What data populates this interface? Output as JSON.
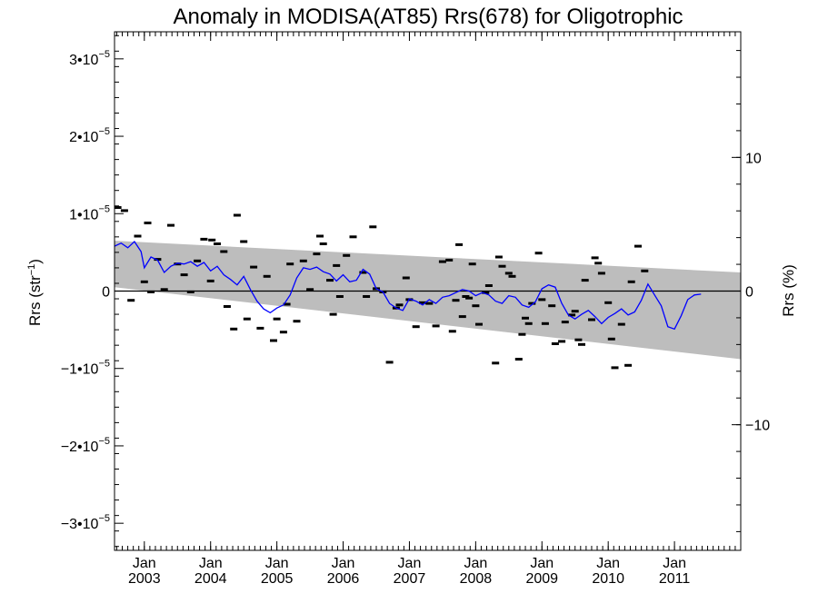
{
  "chart_data": {
    "type": "scatter",
    "title": "Anomaly in MODISA(AT85) Rrs(678) for Oligotrophic",
    "ylabel_left": {
      "base": "Rrs (str",
      "sup": "−1",
      "close": ")"
    },
    "ylabel_right": "Rrs (%)",
    "x_range": [
      2002.55,
      2012.0
    ],
    "y_range": [
      -3.35e-05,
      3.35e-05
    ],
    "y_right_range": [
      -19.4,
      19.4
    ],
    "x_ticks": [
      {
        "x": 2003.0,
        "month": "Jan",
        "year": "2003"
      },
      {
        "x": 2004.0,
        "month": "Jan",
        "year": "2004"
      },
      {
        "x": 2005.0,
        "month": "Jan",
        "year": "2005"
      },
      {
        "x": 2006.0,
        "month": "Jan",
        "year": "2006"
      },
      {
        "x": 2007.0,
        "month": "Jan",
        "year": "2007"
      },
      {
        "x": 2008.0,
        "month": "Jan",
        "year": "2008"
      },
      {
        "x": 2009.0,
        "month": "Jan",
        "year": "2009"
      },
      {
        "x": 2010.0,
        "month": "Jan",
        "year": "2010"
      },
      {
        "x": 2011.0,
        "month": "Jan",
        "year": "2011"
      }
    ],
    "y_ticks_left": [
      {
        "y": 3e-05,
        "mant": "3•10",
        "exp": "−5"
      },
      {
        "y": 2e-05,
        "mant": "2•10",
        "exp": "−5"
      },
      {
        "y": 1e-05,
        "mant": "1•10",
        "exp": "−5"
      },
      {
        "y": 0,
        "mant": "0",
        "exp": ""
      },
      {
        "y": -1e-05,
        "mant": "−1•10",
        "exp": "−5"
      },
      {
        "y": -2e-05,
        "mant": "−2•10",
        "exp": "−5"
      },
      {
        "y": -3e-05,
        "mant": "−3•10",
        "exp": "−5"
      }
    ],
    "y_ticks_right": [
      {
        "y": 10,
        "label": "10"
      },
      {
        "y": 0,
        "label": "0"
      },
      {
        "y": -10,
        "label": "−10"
      }
    ],
    "band": {
      "upper": [
        [
          2002.55,
          6.5e-06
        ],
        [
          2012.0,
          2.4e-06
        ]
      ],
      "lower": [
        [
          2002.55,
          5e-07
        ],
        [
          2012.0,
          -8.8e-06
        ]
      ]
    },
    "series": [
      {
        "kind": "scatter",
        "points": [
          [
            2002.6,
            1.08e-05
          ],
          [
            2002.7,
            1.04e-05
          ],
          [
            2002.8,
            -1.2e-06
          ],
          [
            2002.9,
            7.1e-06
          ],
          [
            2003.0,
            1.2e-06
          ],
          [
            2003.05,
            8.8e-06
          ],
          [
            2003.1,
            -1e-07
          ],
          [
            2003.2,
            4.1e-06
          ],
          [
            2003.3,
            2e-07
          ],
          [
            2003.4,
            8.5e-06
          ],
          [
            2003.5,
            3.5e-06
          ],
          [
            2003.6,
            2.1e-06
          ],
          [
            2003.7,
            -1e-07
          ],
          [
            2003.8,
            3.9e-06
          ],
          [
            2003.9,
            6.7e-06
          ],
          [
            2004.0,
            1.3e-06
          ],
          [
            2004.02,
            6.6e-06
          ],
          [
            2004.1,
            6.1e-06
          ],
          [
            2004.2,
            5.1e-06
          ],
          [
            2004.25,
            -2e-06
          ],
          [
            2004.35,
            -4.9e-06
          ],
          [
            2004.4,
            9.8e-06
          ],
          [
            2004.5,
            6.4e-06
          ],
          [
            2004.55,
            -3.6e-06
          ],
          [
            2004.65,
            3.1e-06
          ],
          [
            2004.75,
            -4.8e-06
          ],
          [
            2004.85,
            1.9e-06
          ],
          [
            2004.95,
            -6.4e-06
          ],
          [
            2005.0,
            -3.6e-06
          ],
          [
            2005.1,
            -5.3e-06
          ],
          [
            2005.15,
            -1.7e-06
          ],
          [
            2005.2,
            3.5e-06
          ],
          [
            2005.3,
            -3.9e-06
          ],
          [
            2005.4,
            3.9e-06
          ],
          [
            2005.5,
            2e-07
          ],
          [
            2005.6,
            4.8e-06
          ],
          [
            2005.65,
            7.1e-06
          ],
          [
            2005.7,
            6.1e-06
          ],
          [
            2005.8,
            1.4e-06
          ],
          [
            2005.85,
            -3e-06
          ],
          [
            2005.9,
            3.3e-06
          ],
          [
            2005.95,
            -7e-07
          ],
          [
            2006.05,
            4.6e-06
          ],
          [
            2006.15,
            7e-06
          ],
          [
            2006.3,
            2.4e-06
          ],
          [
            2006.35,
            -7e-07
          ],
          [
            2006.45,
            8.3e-06
          ],
          [
            2006.5,
            3e-07
          ],
          [
            2006.6,
            -1e-07
          ],
          [
            2006.7,
            -9.2e-06
          ],
          [
            2006.8,
            -2.2e-06
          ],
          [
            2006.85,
            -1.8e-06
          ],
          [
            2006.95,
            1.7e-06
          ],
          [
            2007.0,
            -1.1e-06
          ],
          [
            2007.1,
            -4.6e-06
          ],
          [
            2007.2,
            -1.5e-06
          ],
          [
            2007.3,
            -1.6e-06
          ],
          [
            2007.4,
            -4.5e-06
          ],
          [
            2007.5,
            3.8e-06
          ],
          [
            2007.6,
            4e-06
          ],
          [
            2007.65,
            -5.2e-06
          ],
          [
            2007.7,
            -1.2e-06
          ],
          [
            2007.75,
            6e-06
          ],
          [
            2007.8,
            -3.3e-06
          ],
          [
            2007.85,
            -7e-07
          ],
          [
            2007.9,
            -9e-07
          ],
          [
            2007.95,
            3.5e-06
          ],
          [
            2008.0,
            -1.9e-06
          ],
          [
            2008.05,
            -4.3e-06
          ],
          [
            2008.15,
            -2e-07
          ],
          [
            2008.2,
            7e-07
          ],
          [
            2008.3,
            -9.3e-06
          ],
          [
            2008.35,
            4.4e-06
          ],
          [
            2008.4,
            3.2e-06
          ],
          [
            2008.5,
            2.3e-06
          ],
          [
            2008.55,
            1.9e-06
          ],
          [
            2008.65,
            -8.8e-06
          ],
          [
            2008.7,
            -5.6e-06
          ],
          [
            2008.75,
            -3.5e-06
          ],
          [
            2008.8,
            -4.2e-06
          ],
          [
            2008.85,
            -1.6e-06
          ],
          [
            2008.95,
            4.9e-06
          ],
          [
            2009.0,
            -1.1e-06
          ],
          [
            2009.05,
            -4.2e-06
          ],
          [
            2009.15,
            -1.9e-06
          ],
          [
            2009.2,
            -6.8e-06
          ],
          [
            2009.3,
            -6.5e-06
          ],
          [
            2009.35,
            -4e-06
          ],
          [
            2009.45,
            -3.1e-06
          ],
          [
            2009.5,
            -2.6e-06
          ],
          [
            2009.55,
            -6.3e-06
          ],
          [
            2009.6,
            -6.9e-06
          ],
          [
            2009.65,
            1.4e-06
          ],
          [
            2009.75,
            -3.7e-06
          ],
          [
            2009.8,
            4.3e-06
          ],
          [
            2009.85,
            3.6e-06
          ],
          [
            2009.9,
            2.3e-06
          ],
          [
            2010.0,
            -1.5e-06
          ],
          [
            2010.05,
            -6.2e-06
          ],
          [
            2010.1,
            -9.9e-06
          ],
          [
            2010.2,
            -4.3e-06
          ],
          [
            2010.3,
            -9.6e-06
          ],
          [
            2010.35,
            1.2e-06
          ],
          [
            2010.45,
            5.8e-06
          ],
          [
            2010.55,
            2.6e-06
          ]
        ]
      },
      {
        "kind": "line",
        "name": "",
        "color": "#0000ff",
        "points": [
          [
            2002.55,
            5.8e-06
          ],
          [
            2002.65,
            6.2e-06
          ],
          [
            2002.75,
            5.6e-06
          ],
          [
            2002.85,
            6.4e-06
          ],
          [
            2002.95,
            5.1e-06
          ],
          [
            2003.0,
            3e-06
          ],
          [
            2003.1,
            4.4e-06
          ],
          [
            2003.2,
            4e-06
          ],
          [
            2003.3,
            2.4e-06
          ],
          [
            2003.4,
            3.2e-06
          ],
          [
            2003.5,
            3.6e-06
          ],
          [
            2003.6,
            3.5e-06
          ],
          [
            2003.7,
            3.8e-06
          ],
          [
            2003.8,
            3.2e-06
          ],
          [
            2003.9,
            3.7e-06
          ],
          [
            2004.0,
            2.6e-06
          ],
          [
            2004.1,
            3.2e-06
          ],
          [
            2004.2,
            2.1e-06
          ],
          [
            2004.3,
            1.5e-06
          ],
          [
            2004.4,
            8e-07
          ],
          [
            2004.5,
            1.9e-06
          ],
          [
            2004.6,
            2e-07
          ],
          [
            2004.7,
            -1.3e-06
          ],
          [
            2004.8,
            -2.3e-06
          ],
          [
            2004.9,
            -2.8e-06
          ],
          [
            2005.0,
            -2.2e-06
          ],
          [
            2005.1,
            -1.8e-06
          ],
          [
            2005.2,
            -5e-07
          ],
          [
            2005.3,
            1.7e-06
          ],
          [
            2005.4,
            3e-06
          ],
          [
            2005.5,
            2.8e-06
          ],
          [
            2005.6,
            3.1e-06
          ],
          [
            2005.7,
            2.5e-06
          ],
          [
            2005.8,
            2.2e-06
          ],
          [
            2005.9,
            1.3e-06
          ],
          [
            2006.0,
            2.1e-06
          ],
          [
            2006.1,
            1.2e-06
          ],
          [
            2006.2,
            1.4e-06
          ],
          [
            2006.3,
            2.8e-06
          ],
          [
            2006.4,
            2.2e-06
          ],
          [
            2006.5,
            3e-07
          ],
          [
            2006.6,
            -1e-07
          ],
          [
            2006.7,
            -1.6e-06
          ],
          [
            2006.8,
            -2.2e-06
          ],
          [
            2006.9,
            -2.5e-06
          ],
          [
            2007.0,
            -1e-06
          ],
          [
            2007.1,
            -1.3e-06
          ],
          [
            2007.2,
            -1.8e-06
          ],
          [
            2007.3,
            -1.1e-06
          ],
          [
            2007.4,
            -1.6e-06
          ],
          [
            2007.5,
            -8e-07
          ],
          [
            2007.6,
            -6e-07
          ],
          [
            2007.7,
            -2e-07
          ],
          [
            2007.8,
            2e-07
          ],
          [
            2007.9,
            0
          ],
          [
            2008.0,
            -6e-07
          ],
          [
            2008.1,
            -2e-07
          ],
          [
            2008.2,
            -5e-07
          ],
          [
            2008.3,
            -1.3e-06
          ],
          [
            2008.4,
            -1.6e-06
          ],
          [
            2008.5,
            -6e-07
          ],
          [
            2008.6,
            -8e-07
          ],
          [
            2008.7,
            -1.8e-06
          ],
          [
            2008.8,
            -2.1e-06
          ],
          [
            2008.9,
            -1.4e-06
          ],
          [
            2009.0,
            3e-07
          ],
          [
            2009.1,
            8e-07
          ],
          [
            2009.2,
            5e-07
          ],
          [
            2009.3,
            -1.6e-06
          ],
          [
            2009.4,
            -3.1e-06
          ],
          [
            2009.5,
            -3.6e-06
          ],
          [
            2009.6,
            -3e-06
          ],
          [
            2009.7,
            -2.5e-06
          ],
          [
            2009.8,
            -3.3e-06
          ],
          [
            2009.9,
            -4.2e-06
          ],
          [
            2010.0,
            -3.4e-06
          ],
          [
            2010.1,
            -2.9e-06
          ],
          [
            2010.2,
            -2.3e-06
          ],
          [
            2010.3,
            -3.1e-06
          ],
          [
            2010.4,
            -2.7e-06
          ],
          [
            2010.5,
            -1.2e-06
          ],
          [
            2010.6,
            9e-07
          ],
          [
            2010.7,
            -5e-07
          ],
          [
            2010.8,
            -1.9e-06
          ],
          [
            2010.9,
            -4.6e-06
          ],
          [
            2011.0,
            -4.9e-06
          ],
          [
            2011.1,
            -3.2e-06
          ],
          [
            2011.2,
            -1.1e-06
          ],
          [
            2011.3,
            -5e-07
          ],
          [
            2011.4,
            -4e-07
          ]
        ]
      }
    ]
  },
  "colors": {
    "band": "#bdbdbd",
    "axis": "#000000",
    "zero_line": "#000000"
  }
}
